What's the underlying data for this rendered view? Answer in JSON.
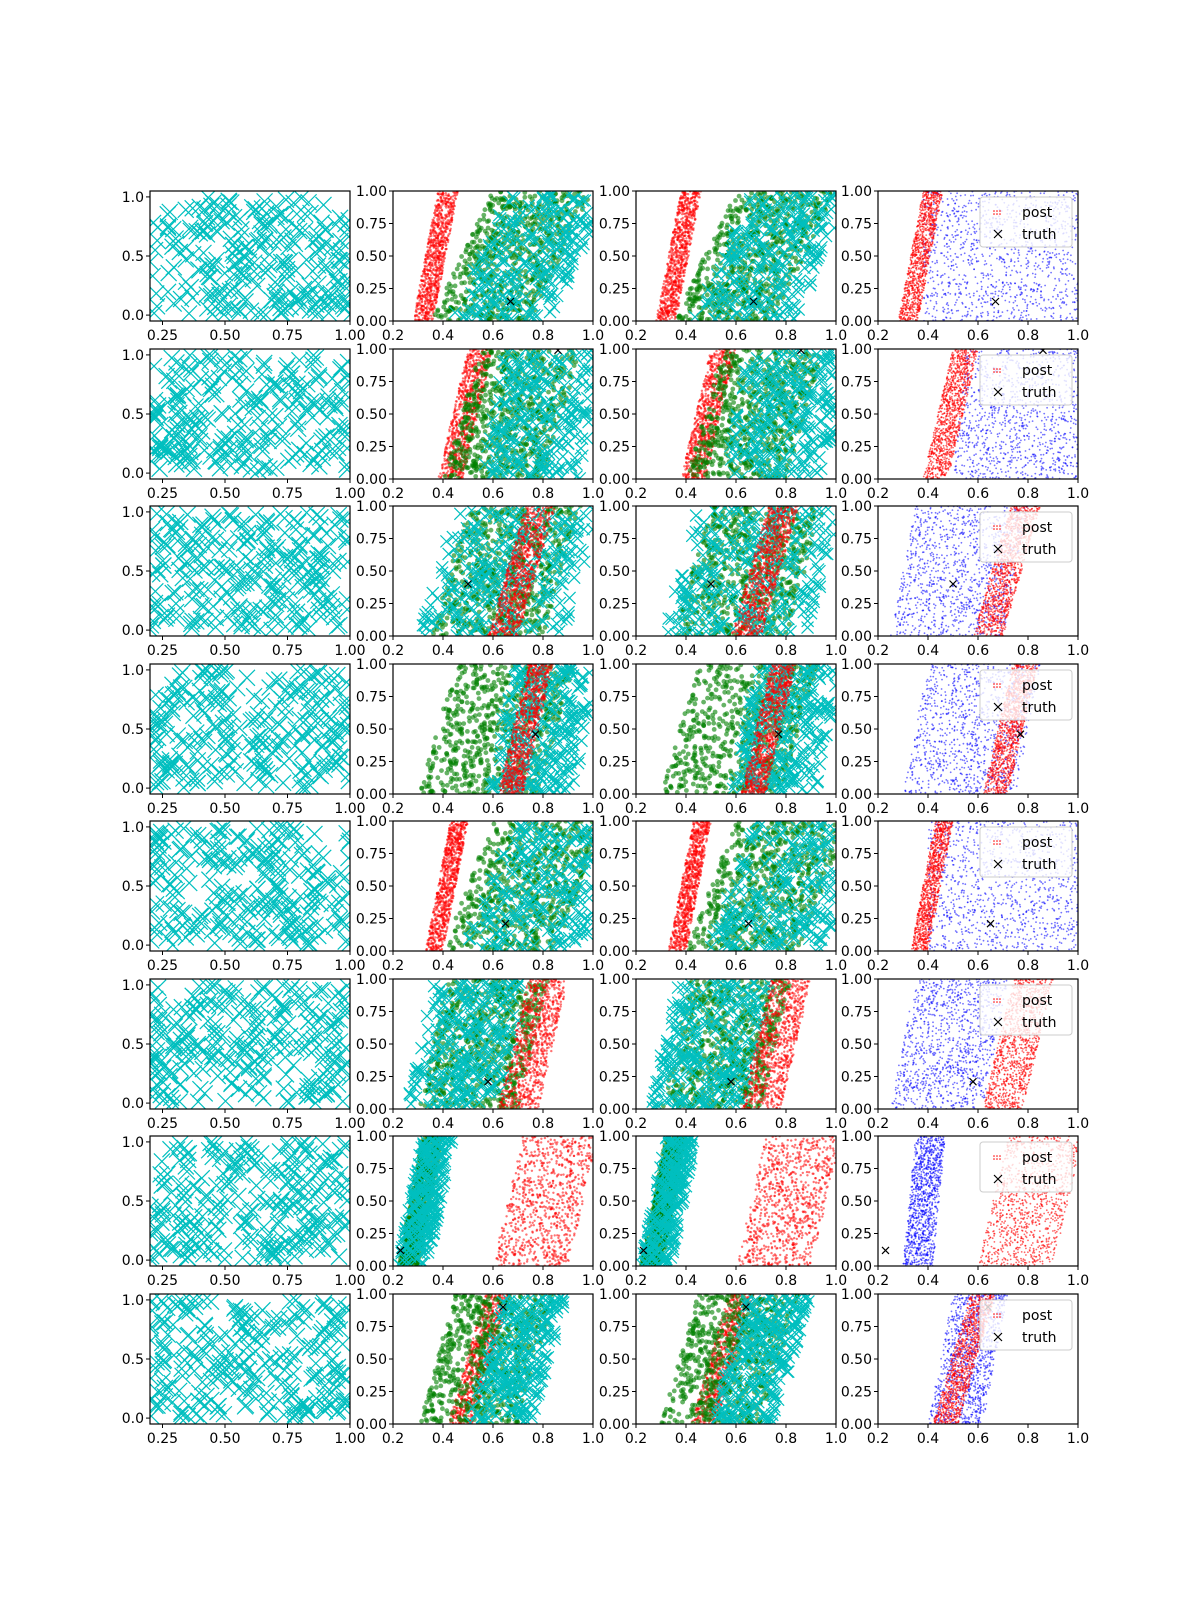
{
  "figure": {
    "rows": 8,
    "cols": 4
  },
  "legend": {
    "post_label": "post",
    "truth_label": "truth",
    "placement": "upper-right"
  },
  "colors": {
    "grid": "#00bfbf",
    "red": "#ff0000",
    "green": "#008000",
    "cyan": "#00bfbf",
    "blue": "#0000ff",
    "truth": "#000000"
  },
  "chart_data": {
    "type": "scatter",
    "panels_per_row": [
      {
        "col": 1,
        "content": "cyan x-marker grid (prior samples)",
        "xlim": [
          0.2,
          1.0
        ],
        "ylim": [
          -0.05,
          1.05
        ],
        "xticks": [
          "0.25",
          "0.50",
          "0.75",
          "1.00"
        ],
        "yticks": [
          "0.0",
          "0.5",
          "1.0"
        ]
      },
      {
        "col": 2,
        "content": "red points, green points, cyan x markers, truth marker",
        "xlim": [
          0.2,
          1.0
        ],
        "ylim": [
          0.0,
          1.0
        ],
        "xticks": [
          "0.2",
          "0.4",
          "0.6",
          "0.8",
          "1.0"
        ],
        "yticks": [
          "0.00",
          "0.25",
          "0.50",
          "0.75",
          "1.00"
        ]
      },
      {
        "col": 3,
        "content": "red points, green points, cyan x markers, truth marker",
        "xlim": [
          0.2,
          1.0
        ],
        "ylim": [
          0.0,
          1.0
        ],
        "xticks": [
          "0.2",
          "0.4",
          "0.6",
          "0.8",
          "1.0"
        ],
        "yticks": [
          "0.00",
          "0.25",
          "0.50",
          "0.75",
          "1.00"
        ]
      },
      {
        "col": 4,
        "content": "blue points, red post points, truth marker, legend",
        "xlim": [
          0.2,
          1.0
        ],
        "ylim": [
          0.0,
          1.0
        ],
        "xticks": [
          "0.2",
          "0.4",
          "0.6",
          "0.8",
          "1.0"
        ],
        "yticks": [
          "0.00",
          "0.25",
          "0.50",
          "0.75",
          "1.00"
        ]
      }
    ],
    "rows": [
      {
        "truth": [
          0.67,
          0.15
        ],
        "red_band": [
          0.28,
          0.36,
          0.1
        ],
        "green_band": [
          0.35,
          0.75,
          0.25
        ],
        "cyan_band": [
          0.42,
          0.83,
          0.25
        ],
        "blue_band": [
          0.38,
          1.0,
          0.0
        ],
        "mode": "left"
      },
      {
        "truth": [
          0.86,
          0.99
        ],
        "red_band": [
          0.38,
          0.48,
          0.12
        ],
        "green_band": [
          0.4,
          0.8,
          0.15
        ],
        "cyan_band": [
          0.55,
          0.95,
          0.1
        ],
        "blue_band": [
          0.5,
          1.0,
          0.05
        ],
        "mode": "left"
      },
      {
        "truth": [
          0.5,
          0.4
        ],
        "red_band": [
          0.58,
          0.7,
          0.15
        ],
        "green_band": [
          0.35,
          0.8,
          0.15
        ],
        "cyan_band": [
          0.3,
          0.88,
          0.15
        ],
        "blue_band": [
          0.25,
          0.7,
          0.1
        ],
        "mode": "right"
      },
      {
        "truth": [
          0.77,
          0.46
        ],
        "red_band": [
          0.62,
          0.72,
          0.12
        ],
        "green_band": [
          0.3,
          0.78,
          0.15
        ],
        "cyan_band": [
          0.58,
          0.92,
          0.1
        ],
        "blue_band": [
          0.3,
          0.75,
          0.1
        ],
        "mode": "right"
      },
      {
        "truth": [
          0.65,
          0.21
        ],
        "red_band": [
          0.33,
          0.4,
          0.1
        ],
        "green_band": [
          0.4,
          0.85,
          0.2
        ],
        "cyan_band": [
          0.48,
          0.95,
          0.2
        ],
        "blue_band": [
          0.4,
          1.0,
          0.0
        ],
        "mode": "left"
      },
      {
        "truth": [
          0.58,
          0.21
        ],
        "red_band": [
          0.62,
          0.78,
          0.12
        ],
        "green_band": [
          0.3,
          0.7,
          0.12
        ],
        "cyan_band": [
          0.25,
          0.62,
          0.12
        ],
        "blue_band": [
          0.25,
          0.62,
          0.1
        ],
        "mode": "right"
      },
      {
        "truth": [
          0.23,
          0.12
        ],
        "red_band": [
          0.6,
          0.9,
          0.12
        ],
        "green_band": [
          0.22,
          0.3,
          0.1
        ],
        "cyan_band": [
          0.22,
          0.34,
          0.1
        ],
        "blue_band": [
          0.3,
          0.42,
          0.05
        ],
        "mode": "right"
      },
      {
        "truth": [
          0.64,
          0.9
        ],
        "red_band": [
          0.42,
          0.52,
          0.15
        ],
        "green_band": [
          0.3,
          0.7,
          0.15
        ],
        "cyan_band": [
          0.5,
          0.75,
          0.15
        ],
        "blue_band": [
          0.4,
          0.62,
          0.1
        ],
        "mode": "left"
      }
    ]
  }
}
